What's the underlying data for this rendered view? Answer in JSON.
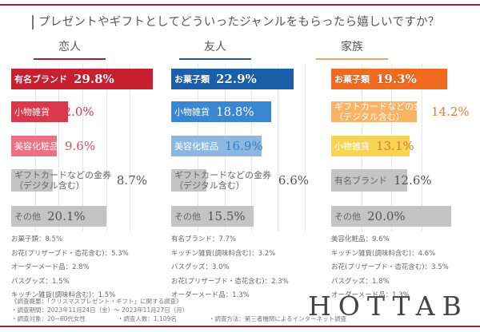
{
  "title": "プレゼントやギフトとしてどういったジャンルをもらったら嬉しいですか？",
  "colors": {
    "accent_rule": "#9b2335",
    "lovers": "#c8202f",
    "friends": "#1a5fa8",
    "family": "#f06a20",
    "other_bar": "#c4c4c4"
  },
  "chart_data": [
    {
      "type": "bar",
      "orientation": "horizontal",
      "title": "恋人",
      "xlim": [
        0,
        30
      ],
      "grid": true,
      "categories": [
        "有名ブランド",
        "小物雑貨",
        "美容化粧品",
        "ギフトカードなどの金券（デジタル含む）",
        "その他"
      ],
      "labels": [
        "29.8%",
        "12.0%",
        "9.6%",
        "8.7%",
        "20.1%"
      ],
      "values": [
        29.8,
        12.0,
        9.6,
        8.7,
        20.1
      ],
      "bar_colors": [
        "#c8202f",
        "#d9394b",
        "#ec7283",
        "#c4c4c4",
        "#c4c4c4"
      ],
      "value_colors": [
        "#ffffff",
        "#d9394b",
        "#d9505f",
        "#555555",
        "#555555"
      ],
      "others": [
        "お菓子類：8.5%",
        "お花(プリザーブド・造花含む)：5.3%",
        "オーダーメード品：2.8%",
        "バスグッズ：1.5%",
        "キッチン雑貨(調味料含む)：1.5%"
      ]
    },
    {
      "type": "bar",
      "orientation": "horizontal",
      "title": "友人",
      "xlim": [
        0,
        27
      ],
      "grid": true,
      "categories": [
        "お菓子類",
        "小物雑貨",
        "美容化粧品",
        "ギフトカードなどの金券（デジタル含む）",
        "その他"
      ],
      "labels": [
        "22.9%",
        "18.8%",
        "16.9%",
        "6.6%",
        "15.5%"
      ],
      "values": [
        22.9,
        18.8,
        16.9,
        6.6,
        15.5
      ],
      "bar_colors": [
        "#1a5fa8",
        "#3a86d0",
        "#8ab8e0",
        "#c4c4c4",
        "#c4c4c4"
      ],
      "value_colors": [
        "#ffffff",
        "#ffffff",
        "#3a7cc0",
        "#555555",
        "#555555"
      ],
      "others": [
        "有名ブランド：7.7%",
        "キッチン雑貨(調味料含む)：3.2%",
        "バスグッズ：3.0%",
        "お花(プリザーブド・造花含む)：2.3%",
        "オーダーメード品：1.3%"
      ]
    },
    {
      "type": "bar",
      "orientation": "horizontal",
      "title": "家族",
      "xlim": [
        0,
        20
      ],
      "grid": true,
      "categories": [
        "お菓子類",
        "ギフトカードなどの金券（デジタル含む）",
        "小物雑貨",
        "有名ブランド",
        "その他"
      ],
      "labels": [
        "19.3%",
        "14.2%",
        "13.1%",
        "12.6%",
        "20.0%"
      ],
      "values": [
        19.3,
        14.2,
        13.1,
        12.6,
        20.0
      ],
      "bar_colors": [
        "#f06a20",
        "#f8b466",
        "#f8d455",
        "#c4c4c4",
        "#c4c4c4"
      ],
      "value_colors": [
        "#ffffff",
        "#e07a30",
        "#e07a30",
        "#555555",
        "#555555"
      ],
      "others": [
        "美容化粧品：9.6%",
        "キッチン雑貨(調味料含む)：4.6%",
        "お花(プリザーブド・造花含む)：3.5%",
        "バスグッズ：1.8%",
        "オーダーメード品：1.3%"
      ]
    }
  ],
  "notes": {
    "line1": "《調査概要：「クリスマスプレゼント・ギフト」に関する調査》",
    "line2": "・調査期間：2023年11月24日（金）～ 2023年11月27日（月）",
    "target": "・調査対象：20~60代女性",
    "count": "・調査人数：1,109名",
    "method": "・調査方法：第三者機関によるインターネット調査"
  },
  "logo": "HOTTAB"
}
